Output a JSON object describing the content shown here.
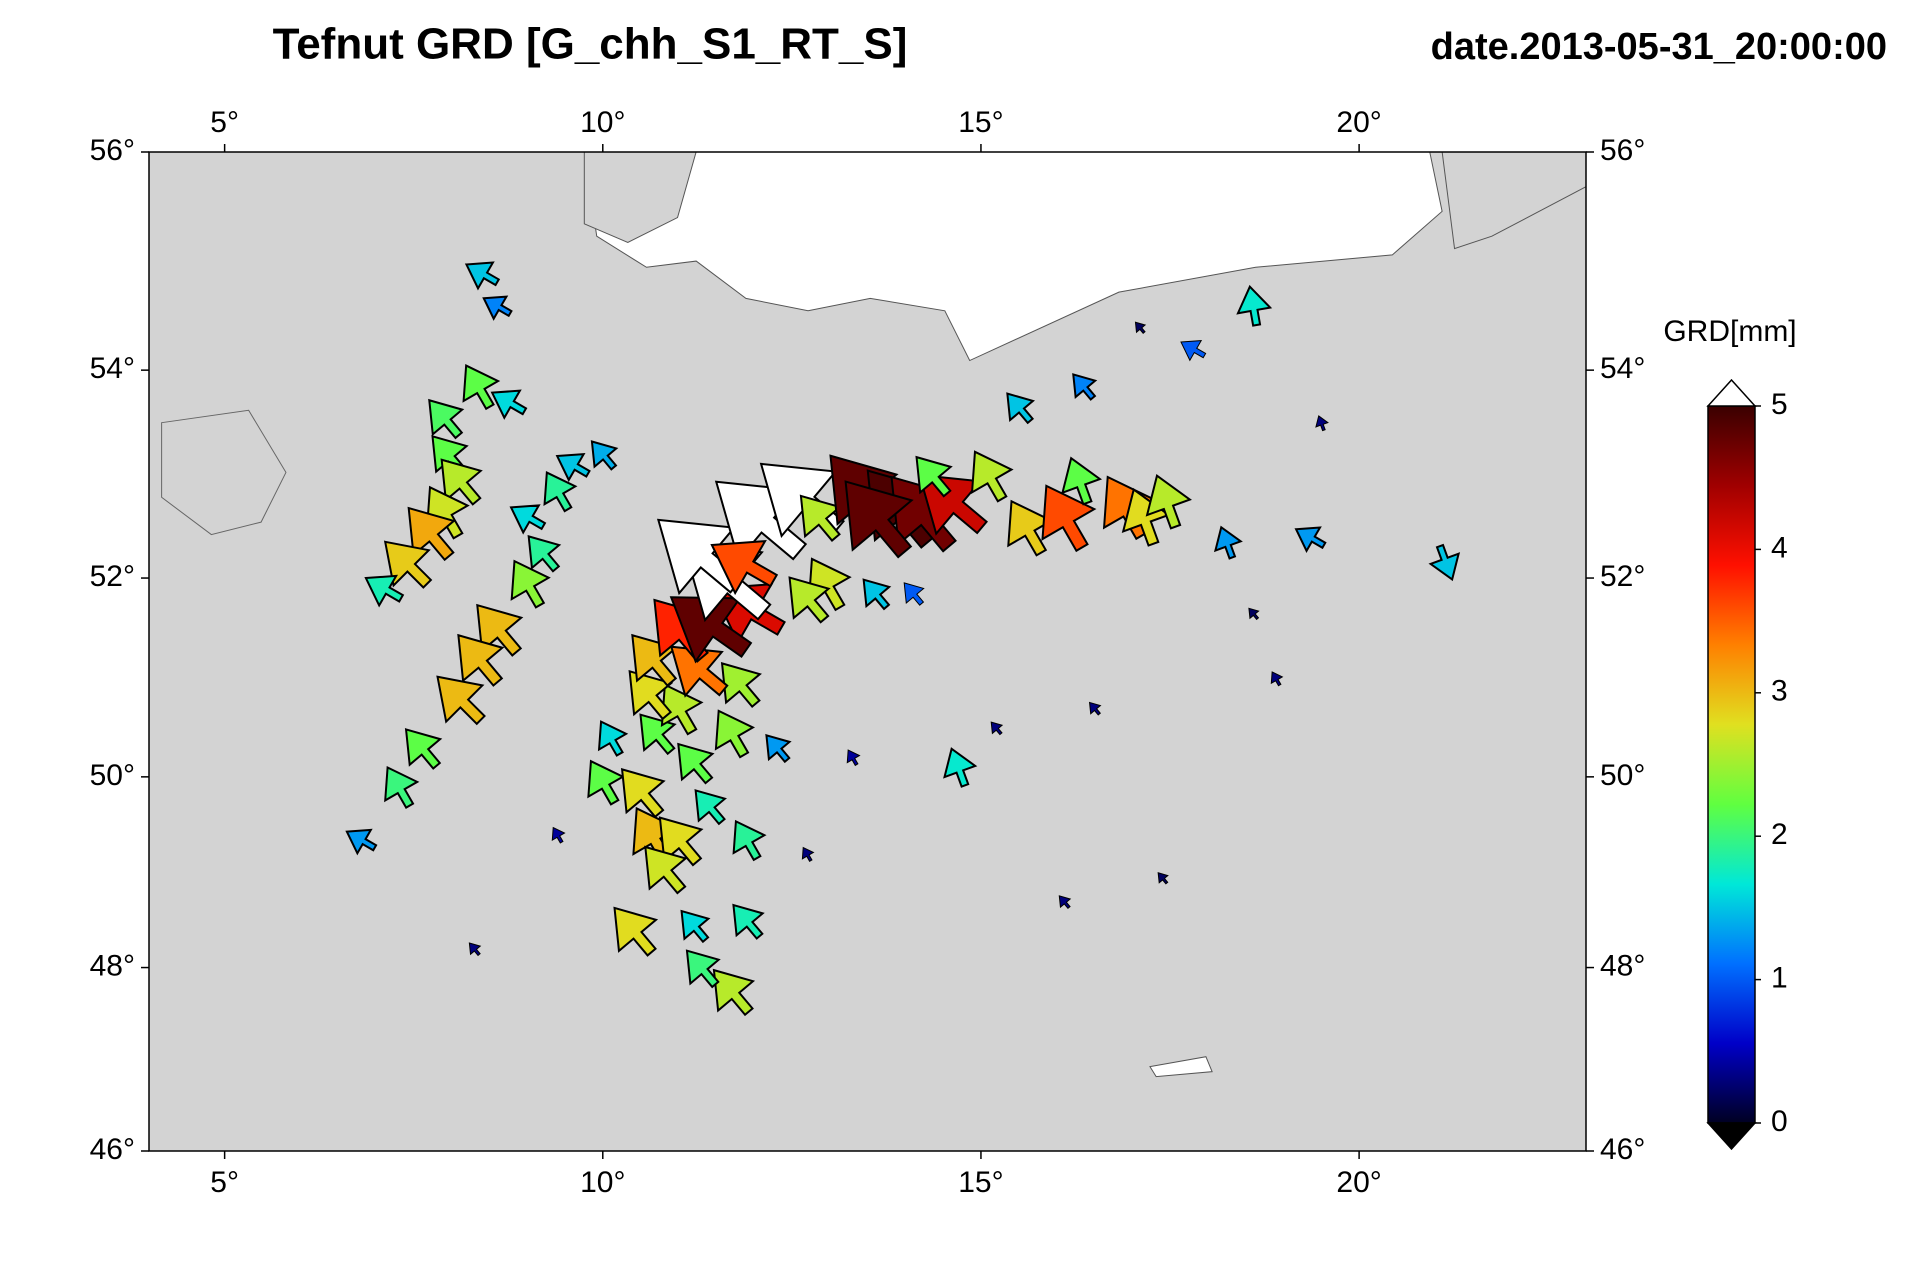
{
  "chart_data": {
    "type": "map-arrows",
    "title": "Tefnut GRD [G_chh_S1_RT_S]",
    "date": "date.2013-05-31_20:00:00",
    "xlim": [
      4,
      23
    ],
    "ylim": [
      46,
      56
    ],
    "xticks": [
      {
        "value": 5,
        "label": "5°"
      },
      {
        "value": 10,
        "label": "10°"
      },
      {
        "value": 15,
        "label": "15°"
      },
      {
        "value": 20,
        "label": "20°"
      }
    ],
    "yticks": [
      {
        "value": 46,
        "label": "46°"
      },
      {
        "value": 48,
        "label": "48°"
      },
      {
        "value": 50,
        "label": "50°"
      },
      {
        "value": 52,
        "label": "52°"
      },
      {
        "value": 54,
        "label": "54°"
      },
      {
        "value": 56,
        "label": "56°"
      }
    ],
    "colorbar": {
      "label": "GRD[mm]",
      "lim": [
        0,
        5
      ],
      "ticks": [
        0,
        1,
        2,
        3,
        4,
        5
      ],
      "colors": [
        "#000022",
        "#0000c8",
        "#0070ff",
        "#00e8d8",
        "#60ff40",
        "#e0e020",
        "#ff8000",
        "#ff1000",
        "#a00000",
        "#3a0000"
      ],
      "over_color": "#ffffff",
      "under_color": "#000000"
    },
    "stations": {
      "lon": [
        8.4,
        8.6,
        8.35,
        7.9,
        8.75,
        7.95,
        8.1,
        7.9,
        7.7,
        7.4,
        7.1,
        9.2,
        9.0,
        9.4,
        9.6,
        10.0,
        8.6,
        8.35,
        8.1,
        9.0,
        7.6,
        7.3,
        6.8,
        10.0,
        10.5,
        10.65,
        11.0,
        10.8,
        10.4,
        11.7,
        11.3,
        11.2,
        11.9,
        11.9,
        11.4,
        11.2,
        10.7,
        11.0,
        11.7,
        11.8,
        10.6,
        10.65,
        11.25,
        11.0,
        11.9,
        11.4,
        11.6,
        11.25,
        12.05,
        12.6,
        11.85,
        12.85,
        12.95,
        12.7,
        13.4,
        13.9,
        14.2,
        13.6,
        14.6,
        14.35,
        15.1,
        15.6,
        16.1,
        16.9,
        17.15,
        17.45,
        16.3,
        18.6,
        21.15,
        19.35,
        18.25,
        14.7,
        10.1,
        12.3,
        13.6,
        14.1,
        15.5,
        16.35,
        17.8,
        13.3,
        15.2,
        16.5,
        12.7,
        16.1,
        9.4,
        8.3,
        18.6,
        19.5,
        17.1,
        18.9,
        17.4
      ],
      "lat": [
        54.9,
        54.6,
        53.85,
        53.55,
        53.7,
        53.2,
        52.95,
        52.65,
        52.45,
        52.15,
        51.9,
        52.25,
        52.6,
        52.85,
        53.1,
        53.2,
        51.5,
        51.2,
        50.8,
        51.95,
        50.3,
        49.9,
        49.35,
        49.95,
        49.85,
        49.4,
        49.35,
        49.05,
        48.4,
        47.75,
        48.0,
        48.45,
        48.5,
        49.35,
        49.7,
        50.15,
        50.45,
        50.7,
        50.45,
        50.95,
        50.85,
        51.2,
        51.1,
        51.5,
        51.7,
        51.55,
        52.0,
        52.25,
        52.6,
        52.8,
        52.15,
        52.6,
        51.95,
        51.8,
        52.85,
        52.7,
        52.65,
        52.6,
        52.75,
        53.0,
        53.0,
        52.5,
        52.6,
        52.7,
        52.6,
        52.75,
        52.95,
        54.6,
        52.15,
        52.4,
        52.35,
        50.1,
        50.4,
        50.3,
        51.85,
        51.85,
        53.65,
        53.85,
        54.2,
        50.2,
        50.5,
        50.7,
        49.2,
        48.7,
        49.4,
        48.2,
        51.65,
        53.5,
        54.4,
        51.0,
        48.95
      ],
      "values": [
        1.5,
        1.2,
        2.2,
        2.1,
        1.6,
        2.2,
        2.6,
        2.7,
        3.1,
        2.9,
        1.8,
        1.9,
        1.6,
        1.9,
        1.5,
        1.4,
        3.0,
        3.0,
        3.0,
        2.4,
        2.2,
        2.0,
        1.3,
        2.2,
        2.8,
        3.0,
        2.8,
        2.7,
        2.8,
        2.6,
        2.0,
        1.6,
        1.8,
        1.9,
        1.8,
        2.2,
        2.2,
        2.6,
        2.4,
        2.5,
        2.8,
        3.0,
        3.4,
        3.8,
        4.1,
        4.8,
        5.6,
        5.4,
        5.8,
        5.3,
        3.6,
        2.6,
        2.7,
        2.6,
        4.8,
        4.9,
        4.7,
        4.8,
        4.2,
        2.2,
        2.6,
        2.9,
        3.6,
        3.4,
        2.8,
        2.6,
        2.2,
        1.7,
        1.5,
        1.3,
        1.3,
        1.7,
        1.6,
        1.3,
        1.5,
        1.0,
        1.5,
        1.2,
        1.0,
        0.4,
        0.3,
        0.3,
        0.3,
        0.3,
        0.4,
        0.3,
        0.2,
        0.3,
        0.2,
        0.3,
        0.2
      ],
      "direction": [
        300,
        300,
        330,
        320,
        300,
        320,
        320,
        330,
        320,
        315,
        300,
        320,
        300,
        330,
        300,
        320,
        320,
        320,
        315,
        330,
        320,
        330,
        300,
        330,
        320,
        330,
        320,
        320,
        320,
        320,
        320,
        320,
        320,
        330,
        320,
        320,
        320,
        330,
        330,
        320,
        320,
        320,
        310,
        320,
        300,
        305,
        310,
        310,
        310,
        310,
        300,
        320,
        330,
        320,
        320,
        320,
        320,
        320,
        310,
        320,
        330,
        330,
        330,
        330,
        340,
        340,
        340,
        350,
        160,
        300,
        340,
        340,
        330,
        320,
        320,
        320,
        320,
        320,
        300,
        330,
        320,
        320,
        330,
        320,
        330,
        320,
        320,
        340,
        320,
        330,
        320
      ]
    }
  }
}
